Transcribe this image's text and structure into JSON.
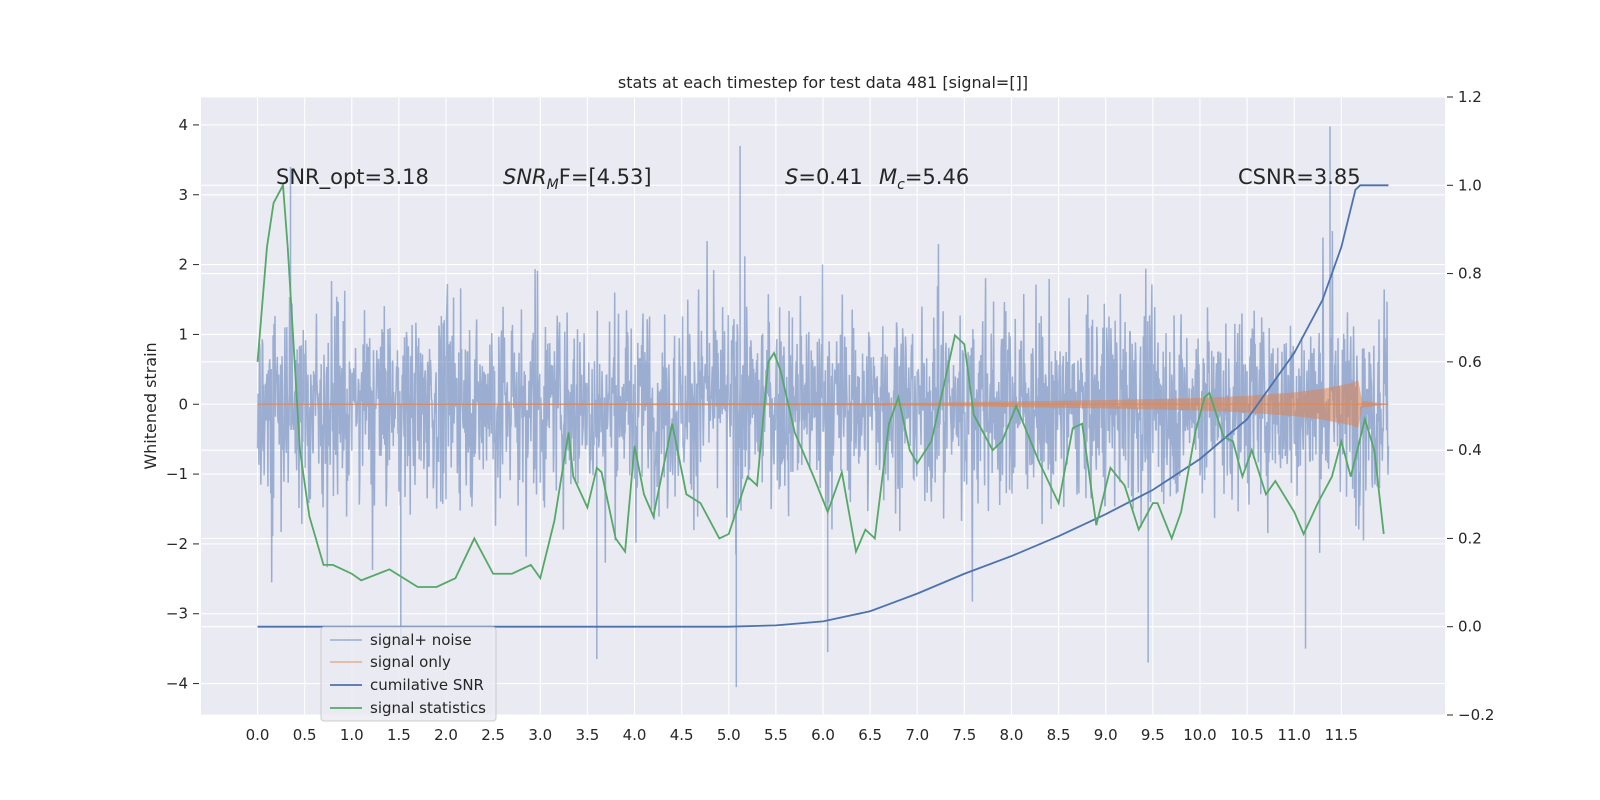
{
  "chart_data": {
    "type": "line",
    "title": "stats at each timestep for test data 481 [signal=[]]",
    "xlabel": "",
    "ylabel": "Whitened strain",
    "xlim": [
      -0.6,
      12.6
    ],
    "ylim": [
      -4.45,
      4.4
    ],
    "y2lim": [
      -0.2,
      1.2
    ],
    "grid": true,
    "x_ticks": [
      "0.0",
      "0.5",
      "1.0",
      "1.5",
      "2.0",
      "2.5",
      "3.0",
      "3.5",
      "4.0",
      "4.5",
      "5.0",
      "5.5",
      "6.0",
      "6.5",
      "7.0",
      "7.5",
      "8.0",
      "8.5",
      "9.0",
      "9.5",
      "10.0",
      "10.5",
      "11.0",
      "11.5"
    ],
    "y_ticks": [
      "4",
      "3",
      "2",
      "1",
      "0",
      "−1",
      "−2",
      "−3",
      "−4"
    ],
    "y2_ticks": [
      "1.2",
      "1.0",
      "0.8",
      "0.6",
      "0.4",
      "0.2",
      "0.0",
      "−0.2"
    ],
    "annotations": {
      "snr_opt": "SNR_opt=3.18",
      "snr_mf_main": "SNR",
      "snr_mf_sub": "M",
      "snr_mf_rest": "F=[4.53]",
      "s_var": "S",
      "s_rest": "=0.41",
      "mc_var": "M",
      "mc_sub": "c",
      "mc_rest": "=5.46",
      "csnr": "CSNR=3.85"
    },
    "legend": {
      "position": "lower-left",
      "entries": [
        "signal+ noise",
        "signal only",
        "cumilative SNR",
        "signal statistics"
      ]
    },
    "series": [
      {
        "name": "signal+ noise",
        "color": "#4c72b0",
        "axis": "left",
        "description": "whitened strain noise, mostly within about −2 to 2.6 with spikes to about ±4",
        "x_range": [
          0.0,
          12.0
        ],
        "envelope_typical": [
          -2.0,
          2.6
        ],
        "extremes": [
          {
            "x": 1.52,
            "y": -3.5
          },
          {
            "x": 3.6,
            "y": -3.65
          },
          {
            "x": 5.08,
            "y": -4.05
          },
          {
            "x": 6.05,
            "y": -3.55
          },
          {
            "x": 9.45,
            "y": -3.7
          },
          {
            "x": 11.38,
            "y": 3.98
          },
          {
            "x": 11.12,
            "y": -3.5
          },
          {
            "x": 5.12,
            "y": 3.7
          },
          {
            "x": 0.35,
            "y": 3.4
          }
        ]
      },
      {
        "name": "signal only",
        "color": "#dd8452",
        "axis": "left",
        "x": [
          0.0,
          7.0,
          8.0,
          9.0,
          10.0,
          10.5,
          11.0,
          11.3,
          11.6,
          11.68,
          11.72,
          12.0
        ],
        "amplitude": [
          0.0,
          0.02,
          0.04,
          0.06,
          0.09,
          0.12,
          0.17,
          0.22,
          0.3,
          0.34,
          0.05,
          0.0
        ]
      },
      {
        "name": "cumilative SNR",
        "color": "#4c72b0",
        "axis": "right",
        "x": [
          0.0,
          5.0,
          5.5,
          6.0,
          6.5,
          7.0,
          7.5,
          8.0,
          8.5,
          9.0,
          9.5,
          10.0,
          10.5,
          11.0,
          11.3,
          11.5,
          11.65,
          11.7,
          12.0
        ],
        "values": [
          0.0,
          0.0,
          0.003,
          0.012,
          0.035,
          0.075,
          0.12,
          0.16,
          0.205,
          0.255,
          0.31,
          0.38,
          0.47,
          0.62,
          0.74,
          0.86,
          0.99,
          1.0,
          1.0
        ]
      },
      {
        "name": "signal statistics",
        "color": "#55a868",
        "axis": "right",
        "x": [
          0.0,
          0.1,
          0.17,
          0.27,
          0.32,
          0.45,
          0.55,
          0.7,
          0.8,
          1.0,
          1.1,
          1.4,
          1.7,
          1.9,
          2.1,
          2.3,
          2.5,
          2.7,
          2.9,
          3.0,
          3.15,
          3.3,
          3.35,
          3.5,
          3.6,
          3.65,
          3.8,
          3.9,
          4.0,
          4.1,
          4.2,
          4.4,
          4.55,
          4.7,
          4.9,
          5.0,
          5.2,
          5.3,
          5.42,
          5.48,
          5.55,
          5.7,
          5.9,
          6.05,
          6.2,
          6.35,
          6.45,
          6.55,
          6.7,
          6.8,
          6.92,
          7.0,
          7.15,
          7.4,
          7.5,
          7.6,
          7.8,
          7.9,
          8.05,
          8.3,
          8.5,
          8.65,
          8.75,
          8.9,
          9.05,
          9.2,
          9.35,
          9.5,
          9.55,
          9.7,
          9.8,
          9.95,
          10.05,
          10.1,
          10.25,
          10.35,
          10.45,
          10.55,
          10.7,
          10.8,
          11.0,
          11.1,
          11.25,
          11.4,
          11.5,
          11.6,
          11.75,
          11.85,
          11.95
        ],
        "values": [
          0.6,
          0.86,
          0.96,
          1.0,
          0.86,
          0.4,
          0.25,
          0.14,
          0.14,
          0.12,
          0.105,
          0.13,
          0.09,
          0.09,
          0.11,
          0.2,
          0.12,
          0.12,
          0.14,
          0.11,
          0.24,
          0.44,
          0.34,
          0.27,
          0.36,
          0.35,
          0.2,
          0.17,
          0.41,
          0.3,
          0.25,
          0.46,
          0.3,
          0.28,
          0.2,
          0.21,
          0.34,
          0.32,
          0.6,
          0.62,
          0.58,
          0.44,
          0.34,
          0.26,
          0.35,
          0.17,
          0.22,
          0.2,
          0.46,
          0.52,
          0.4,
          0.37,
          0.42,
          0.66,
          0.64,
          0.48,
          0.4,
          0.42,
          0.5,
          0.37,
          0.28,
          0.45,
          0.46,
          0.23,
          0.36,
          0.32,
          0.22,
          0.28,
          0.28,
          0.2,
          0.26,
          0.44,
          0.52,
          0.53,
          0.43,
          0.42,
          0.34,
          0.4,
          0.3,
          0.33,
          0.26,
          0.21,
          0.28,
          0.34,
          0.42,
          0.34,
          0.47,
          0.4,
          0.21
        ]
      }
    ]
  }
}
